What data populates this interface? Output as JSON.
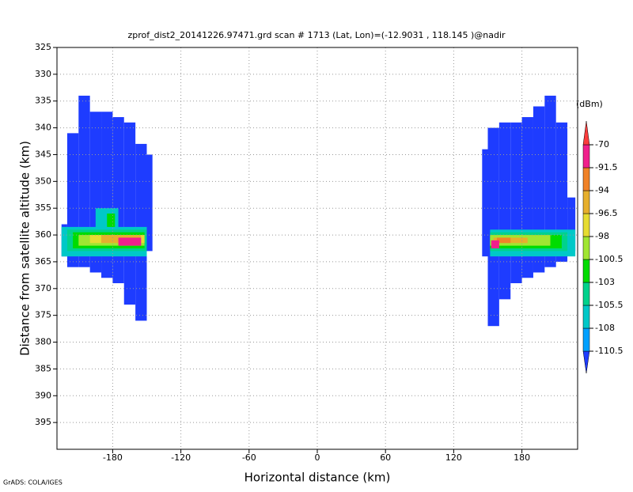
{
  "chart_data": {
    "type": "field",
    "title": "zprof_dist2_20141226.97471.grd  scan # 1713  (Lat, Lon)=(-12.9031 , 118.145 )@nadir",
    "x_label": "Horizontal distance (km)",
    "y_label": "Distance from satellite altitude (km)",
    "footer": "GrADS: COLA/IGES",
    "colorbar_unit": "(dBm)",
    "xlim": [
      -229,
      229
    ],
    "ylim": [
      400,
      325
    ],
    "xticks": [
      -180,
      -120,
      -60,
      0,
      60,
      120,
      180
    ],
    "yticks": [
      325,
      330,
      335,
      340,
      345,
      350,
      355,
      360,
      365,
      370,
      375,
      380,
      385,
      390,
      395
    ],
    "grid": true,
    "levels": [
      -110.5,
      -108,
      -105.5,
      -103,
      -100.5,
      -98,
      -96.5,
      -94,
      -91.5,
      -70
    ],
    "colors": [
      "#1e3cff",
      "#00a0ff",
      "#00c8c8",
      "#00d28c",
      "#00dc00",
      "#a0e632",
      "#e6dc32",
      "#e6af2d",
      "#f08228",
      "#f0208c",
      "#fa3c3c"
    ],
    "cells": [
      {
        "x": [
          -220,
          -210
        ],
        "y": [
          341,
          366
        ],
        "value": -112
      },
      {
        "x": [
          -210,
          -200
        ],
        "y": [
          334,
          366
        ],
        "value": -112
      },
      {
        "x": [
          -200,
          -190
        ],
        "y": [
          337,
          367
        ],
        "value": -112
      },
      {
        "x": [
          -190,
          -180
        ],
        "y": [
          337,
          368
        ],
        "value": -112
      },
      {
        "x": [
          -180,
          -170
        ],
        "y": [
          338,
          369
        ],
        "value": -112
      },
      {
        "x": [
          -170,
          -160
        ],
        "y": [
          339,
          373
        ],
        "value": -112
      },
      {
        "x": [
          -160,
          -150
        ],
        "y": [
          343,
          376
        ],
        "value": -112
      },
      {
        "x": [
          -150,
          -145
        ],
        "y": [
          345,
          363
        ],
        "value": -112
      },
      {
        "x": [
          -225,
          -220
        ],
        "y": [
          358,
          364
        ],
        "value": -112
      },
      {
        "x": [
          145,
          150
        ],
        "y": [
          344,
          364
        ],
        "value": -112
      },
      {
        "x": [
          150,
          160
        ],
        "y": [
          340,
          377
        ],
        "value": -112
      },
      {
        "x": [
          160,
          170
        ],
        "y": [
          339,
          372
        ],
        "value": -112
      },
      {
        "x": [
          170,
          180
        ],
        "y": [
          339,
          369
        ],
        "value": -112
      },
      {
        "x": [
          180,
          190
        ],
        "y": [
          338,
          368
        ],
        "value": -112
      },
      {
        "x": [
          190,
          200
        ],
        "y": [
          336,
          367
        ],
        "value": -112
      },
      {
        "x": [
          200,
          210
        ],
        "y": [
          334,
          366
        ],
        "value": -112
      },
      {
        "x": [
          210,
          220
        ],
        "y": [
          339,
          365
        ],
        "value": -112
      },
      {
        "x": [
          220,
          227
        ],
        "y": [
          353,
          363
        ],
        "value": -112
      },
      {
        "x": [
          -195,
          -175
        ],
        "y": [
          355,
          359
        ],
        "value": -106
      },
      {
        "x": [
          -185,
          -178
        ],
        "y": [
          356,
          359.5
        ],
        "value": -101
      },
      {
        "x": [
          -225,
          -150
        ],
        "y": [
          358.5,
          364
        ],
        "value": -107
      },
      {
        "x": [
          -220,
          -150
        ],
        "y": [
          359,
          363
        ],
        "value": -104
      },
      {
        "x": [
          -215,
          -152
        ],
        "y": [
          359.5,
          362.5
        ],
        "value": -102
      },
      {
        "x": [
          -210,
          -152
        ],
        "y": [
          360,
          362
        ],
        "value": -99
      },
      {
        "x": [
          -200,
          -152
        ],
        "y": [
          360,
          361.5
        ],
        "value": -97
      },
      {
        "x": [
          -190,
          -155
        ],
        "y": [
          360,
          361.5
        ],
        "value": -95
      },
      {
        "x": [
          -175,
          -155
        ],
        "y": [
          360.5,
          362
        ],
        "value": -80
      },
      {
        "x": [
          152,
          227
        ],
        "y": [
          359,
          364
        ],
        "value": -107
      },
      {
        "x": [
          152,
          220
        ],
        "y": [
          359.5,
          363
        ],
        "value": -104
      },
      {
        "x": [
          152,
          215
        ],
        "y": [
          360,
          362.5
        ],
        "value": -102
      },
      {
        "x": [
          152,
          205
        ],
        "y": [
          360,
          362
        ],
        "value": -99
      },
      {
        "x": [
          155,
          185
        ],
        "y": [
          360.5,
          361.5
        ],
        "value": -96
      },
      {
        "x": [
          158,
          170
        ],
        "y": [
          360.5,
          361.5
        ],
        "value": -94
      },
      {
        "x": [
          153,
          160
        ],
        "y": [
          361,
          362.5
        ],
        "value": -80
      }
    ]
  }
}
